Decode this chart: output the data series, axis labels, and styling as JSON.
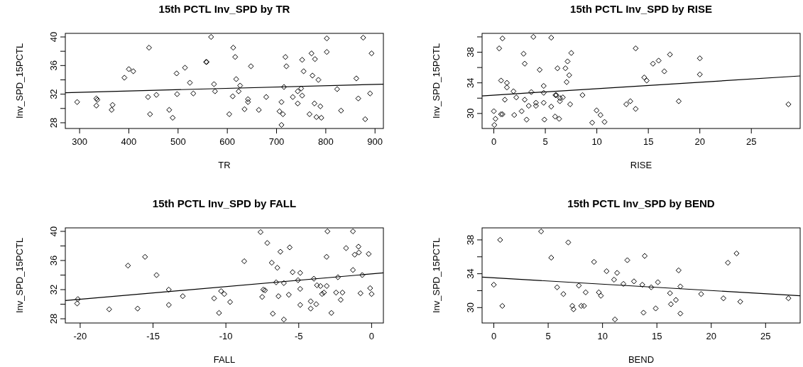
{
  "chart_data": [
    {
      "type": "scatter",
      "title": "15th PCTL Inv_SPD by TR",
      "xlabel": "TR",
      "ylabel": "Inv_SPD_15PCTL",
      "marker": "diamond",
      "xlim": [
        271,
        917
      ],
      "ylim": [
        27.2,
        40.5
      ],
      "xticks": [
        300,
        400,
        500,
        600,
        700,
        800,
        900
      ],
      "yticks": [
        28,
        {
          "value": 30,
          "label": null
        },
        32,
        {
          "value": 34,
          "label": null
        },
        36,
        {
          "value": 38,
          "label": null
        },
        40
      ],
      "series": [
        {
          "color": "#000000",
          "x": [
            295,
            334,
            336,
            334,
            367,
            365,
            391,
            400,
            409,
            441,
            439,
            443,
            456,
            482,
            489,
            497,
            498,
            514,
            524,
            531,
            557,
            558,
            567,
            573,
            575,
            604,
            612,
            611,
            616,
            618,
            626,
            623,
            642,
            642,
            635,
            648,
            664,
            679,
            710,
            706,
            713,
            710,
            718,
            720,
            715,
            733,
            743,
            743,
            750,
            752,
            752,
            755,
            771,
            778,
            773,
            785,
            767,
            777,
            781,
            789,
            791,
            802,
            802,
            823,
            831,
            862,
            866,
            876,
            880,
            893,
            890
          ],
          "values": [
            30.9,
            31.4,
            31.2,
            30.4,
            30.5,
            29.8,
            34.3,
            35.5,
            35.2,
            38.5,
            31.6,
            29.2,
            31.9,
            29.8,
            28.7,
            34.9,
            32.0,
            35.7,
            33.6,
            32.1,
            36.5,
            36.5,
            40.0,
            33.4,
            32.4,
            29.2,
            38.5,
            31.7,
            37.2,
            34.1,
            33.2,
            32.4,
            31.3,
            30.9,
            29.9,
            35.9,
            29.8,
            31.6,
            30.9,
            29.6,
            29.2,
            27.7,
            37.2,
            35.9,
            33.0,
            31.6,
            30.7,
            32.4,
            32.8,
            31.8,
            36.8,
            35.2,
            37.7,
            36.9,
            34.6,
            34.0,
            29.2,
            30.7,
            28.8,
            30.3,
            28.7,
            39.8,
            37.9,
            32.7,
            29.7,
            34.2,
            31.4,
            39.9,
            28.5,
            37.7,
            32.1
          ]
        },
        {
          "type": "line",
          "marker": "none",
          "color": "#000000",
          "x": [
            271,
            917
          ],
          "values": [
            32.2,
            33.4
          ]
        }
      ]
    },
    {
      "type": "scatter",
      "title": "15th PCTL Inv_SPD by RISE",
      "xlabel": "RISE",
      "ylabel": "Inv_SPD_15PCTL",
      "marker": "diamond",
      "xlim": [
        -1.14,
        29.74
      ],
      "ylim": [
        28.04,
        40.46
      ],
      "xticks": [
        0,
        5,
        10,
        15,
        20,
        25
      ],
      "yticks": [
        30,
        {
          "value": 32,
          "label": null
        },
        34,
        {
          "value": 36,
          "label": null
        },
        38,
        {
          "value": 40,
          "label": null
        }
      ],
      "series": [
        {
          "color": "#000000",
          "x": [
            0.84,
            0.52,
            3.84,
            5.57,
            2.89,
            3.0,
            7.52,
            7.16,
            6.18,
            6.95,
            4.45,
            7.32,
            7.07,
            0.7,
            1.27,
            1.27,
            1.91,
            3.64,
            4.84,
            4.84,
            2.18,
            1.07,
            3.0,
            5.98,
            6.07,
            6.7,
            6.43,
            6.41,
            4.09,
            4.09,
            4.84,
            3.39,
            5.57,
            7.41,
            8.61,
            0,
            0.16,
            0.05,
            0.7,
            0.84,
            1.98,
            2.7,
            3.18,
            4.91,
            5.95,
            6.34,
            9.98,
            10.36,
            9.55,
            10.75,
            13.77,
            17.1,
            16.0,
            15.45,
            16.55,
            20.0,
            20.0,
            14.6,
            14.84,
            12.86,
            13.25,
            13.77,
            17.95,
            28.6
          ],
          "values": [
            39.8,
            38.5,
            40.0,
            39.9,
            37.8,
            36.5,
            37.9,
            36.8,
            35.9,
            35.9,
            35.7,
            35.0,
            34.1,
            34.3,
            34.0,
            33.4,
            32.9,
            32.8,
            33.6,
            32.7,
            32.1,
            31.8,
            31.8,
            32.4,
            32.4,
            32.1,
            32.0,
            31.6,
            31.4,
            31.0,
            31.4,
            31.0,
            30.9,
            31.2,
            32.4,
            30.3,
            29.3,
            28.5,
            29.9,
            29.9,
            29.8,
            30.3,
            29.2,
            29.2,
            29.6,
            29.3,
            30.4,
            29.8,
            28.8,
            28.9,
            38.5,
            37.7,
            36.9,
            36.5,
            35.5,
            37.2,
            35.1,
            34.7,
            34.3,
            31.2,
            31.6,
            30.6,
            31.6,
            31.2
          ]
        },
        {
          "type": "line",
          "marker": "none",
          "color": "#000000",
          "x": [
            -1.14,
            29.74
          ],
          "values": [
            32.3,
            34.9
          ]
        }
      ]
    },
    {
      "type": "scatter",
      "title": "15th PCTL Inv_SPD by FALL",
      "xlabel": "FALL",
      "ylabel": "Inv_SPD_15PCTL",
      "marker": "diamond",
      "xlim": [
        -21.02,
        0.81
      ],
      "ylim": [
        27.42,
        40.48
      ],
      "xticks": [
        -20,
        -15,
        -10,
        -5,
        0
      ],
      "yticks": [
        28,
        {
          "value": 30,
          "label": null
        },
        32,
        {
          "value": 34,
          "label": null
        },
        36,
        {
          "value": 38,
          "label": null
        },
        40
      ],
      "series": [
        {
          "color": "#000000",
          "x": [
            -20.16,
            -20.21,
            -18.01,
            -16.72,
            -16.06,
            -15.55,
            -14.76,
            -13.92,
            -13.92,
            -12.96,
            -10.81,
            -10.47,
            -10.33,
            -10.11,
            -9.71,
            -8.74,
            -7.62,
            -7.16,
            -6.85,
            -6.47,
            -6.26,
            -5.62,
            -5.42,
            -4.9,
            -5.05,
            -6.55,
            -6.02,
            -7.43,
            -7.32,
            -7.51,
            -6.39,
            -5.68,
            -4.9,
            -6.78,
            -6.02,
            -4.9,
            -4.18,
            -4.18,
            -3.8,
            -3.96,
            -3.75,
            -3.51,
            -3.08,
            -3.4,
            -3.27,
            -3.03,
            -3.09,
            -2.76,
            -2.44,
            -2.0,
            -2.31,
            -2.12,
            -1.75,
            -1.28,
            -1.28,
            -1.16,
            -0.9,
            -0.87,
            -0.76,
            -0.64,
            -0.1,
            0.0,
            -0.2
          ],
          "values": [
            30.7,
            30.1,
            29.3,
            35.3,
            29.4,
            36.5,
            34.0,
            32.0,
            29.9,
            31.1,
            30.8,
            28.8,
            31.8,
            31.4,
            30.3,
            35.9,
            39.9,
            38.4,
            35.7,
            35.0,
            37.2,
            37.8,
            34.4,
            34.3,
            33.3,
            33.0,
            32.9,
            32.0,
            31.9,
            31.0,
            31.1,
            31.3,
            32.1,
            28.7,
            27.9,
            29.9,
            30.4,
            29.4,
            30.0,
            33.5,
            32.6,
            32.5,
            32.5,
            31.4,
            31.6,
            40.0,
            36.5,
            28.8,
            31.6,
            31.6,
            33.7,
            30.6,
            37.7,
            40.0,
            34.7,
            36.8,
            37.9,
            37.1,
            31.5,
            34.0,
            32.2,
            31.4,
            36.9
          ]
        },
        {
          "type": "line",
          "marker": "none",
          "color": "#000000",
          "x": [
            -21.02,
            0.81
          ],
          "values": [
            30.5,
            34.3
          ]
        }
      ]
    },
    {
      "type": "scatter",
      "title": "15th PCTL Inv_SPD by BEND",
      "xlabel": "BEND",
      "ylabel": "Inv_SPD_15PCTL",
      "marker": "diamond",
      "xlim": [
        -1.08,
        28.18
      ],
      "ylim": [
        28.18,
        39.42
      ],
      "xticks": [
        0,
        5,
        10,
        15,
        20,
        25
      ],
      "yticks": [
        30,
        {
          "value": 32,
          "label": null
        },
        34,
        {
          "value": 36,
          "label": null
        },
        38
      ],
      "series": [
        {
          "color": "#000000",
          "x": [
            0,
            0.58,
            0.78,
            4.35,
            5.28,
            5.82,
            6.4,
            6.85,
            7.22,
            7.33,
            7.82,
            8.04,
            8.3,
            8.45,
            9.22,
            9.66,
            9.85,
            10.37,
            11.34,
            11.06,
            11.14,
            11.92,
            12.28,
            12.89,
            13.66,
            13.88,
            13.77,
            14.48,
            14.89,
            15.09,
            16.21,
            16.29,
            16.75,
            17.0,
            17.16,
            17.16,
            19.07,
            21.12,
            21.53,
            22.33,
            22.67,
            27.1
          ],
          "values": [
            32.7,
            38.0,
            30.2,
            39.0,
            35.9,
            32.4,
            31.6,
            37.7,
            30.2,
            29.8,
            32.6,
            30.2,
            30.2,
            31.8,
            35.4,
            31.8,
            31.4,
            34.3,
            34.1,
            33.3,
            28.6,
            32.8,
            35.6,
            33.1,
            32.7,
            36.1,
            29.4,
            32.4,
            29.9,
            33.0,
            31.7,
            30.4,
            30.9,
            34.4,
            32.5,
            29.3,
            31.6,
            31.1,
            35.3,
            36.4,
            30.7,
            31.1
          ]
        },
        {
          "type": "line",
          "marker": "none",
          "color": "#000000",
          "x": [
            -1.08,
            28.18
          ],
          "values": [
            33.6,
            31.4
          ]
        }
      ]
    }
  ]
}
